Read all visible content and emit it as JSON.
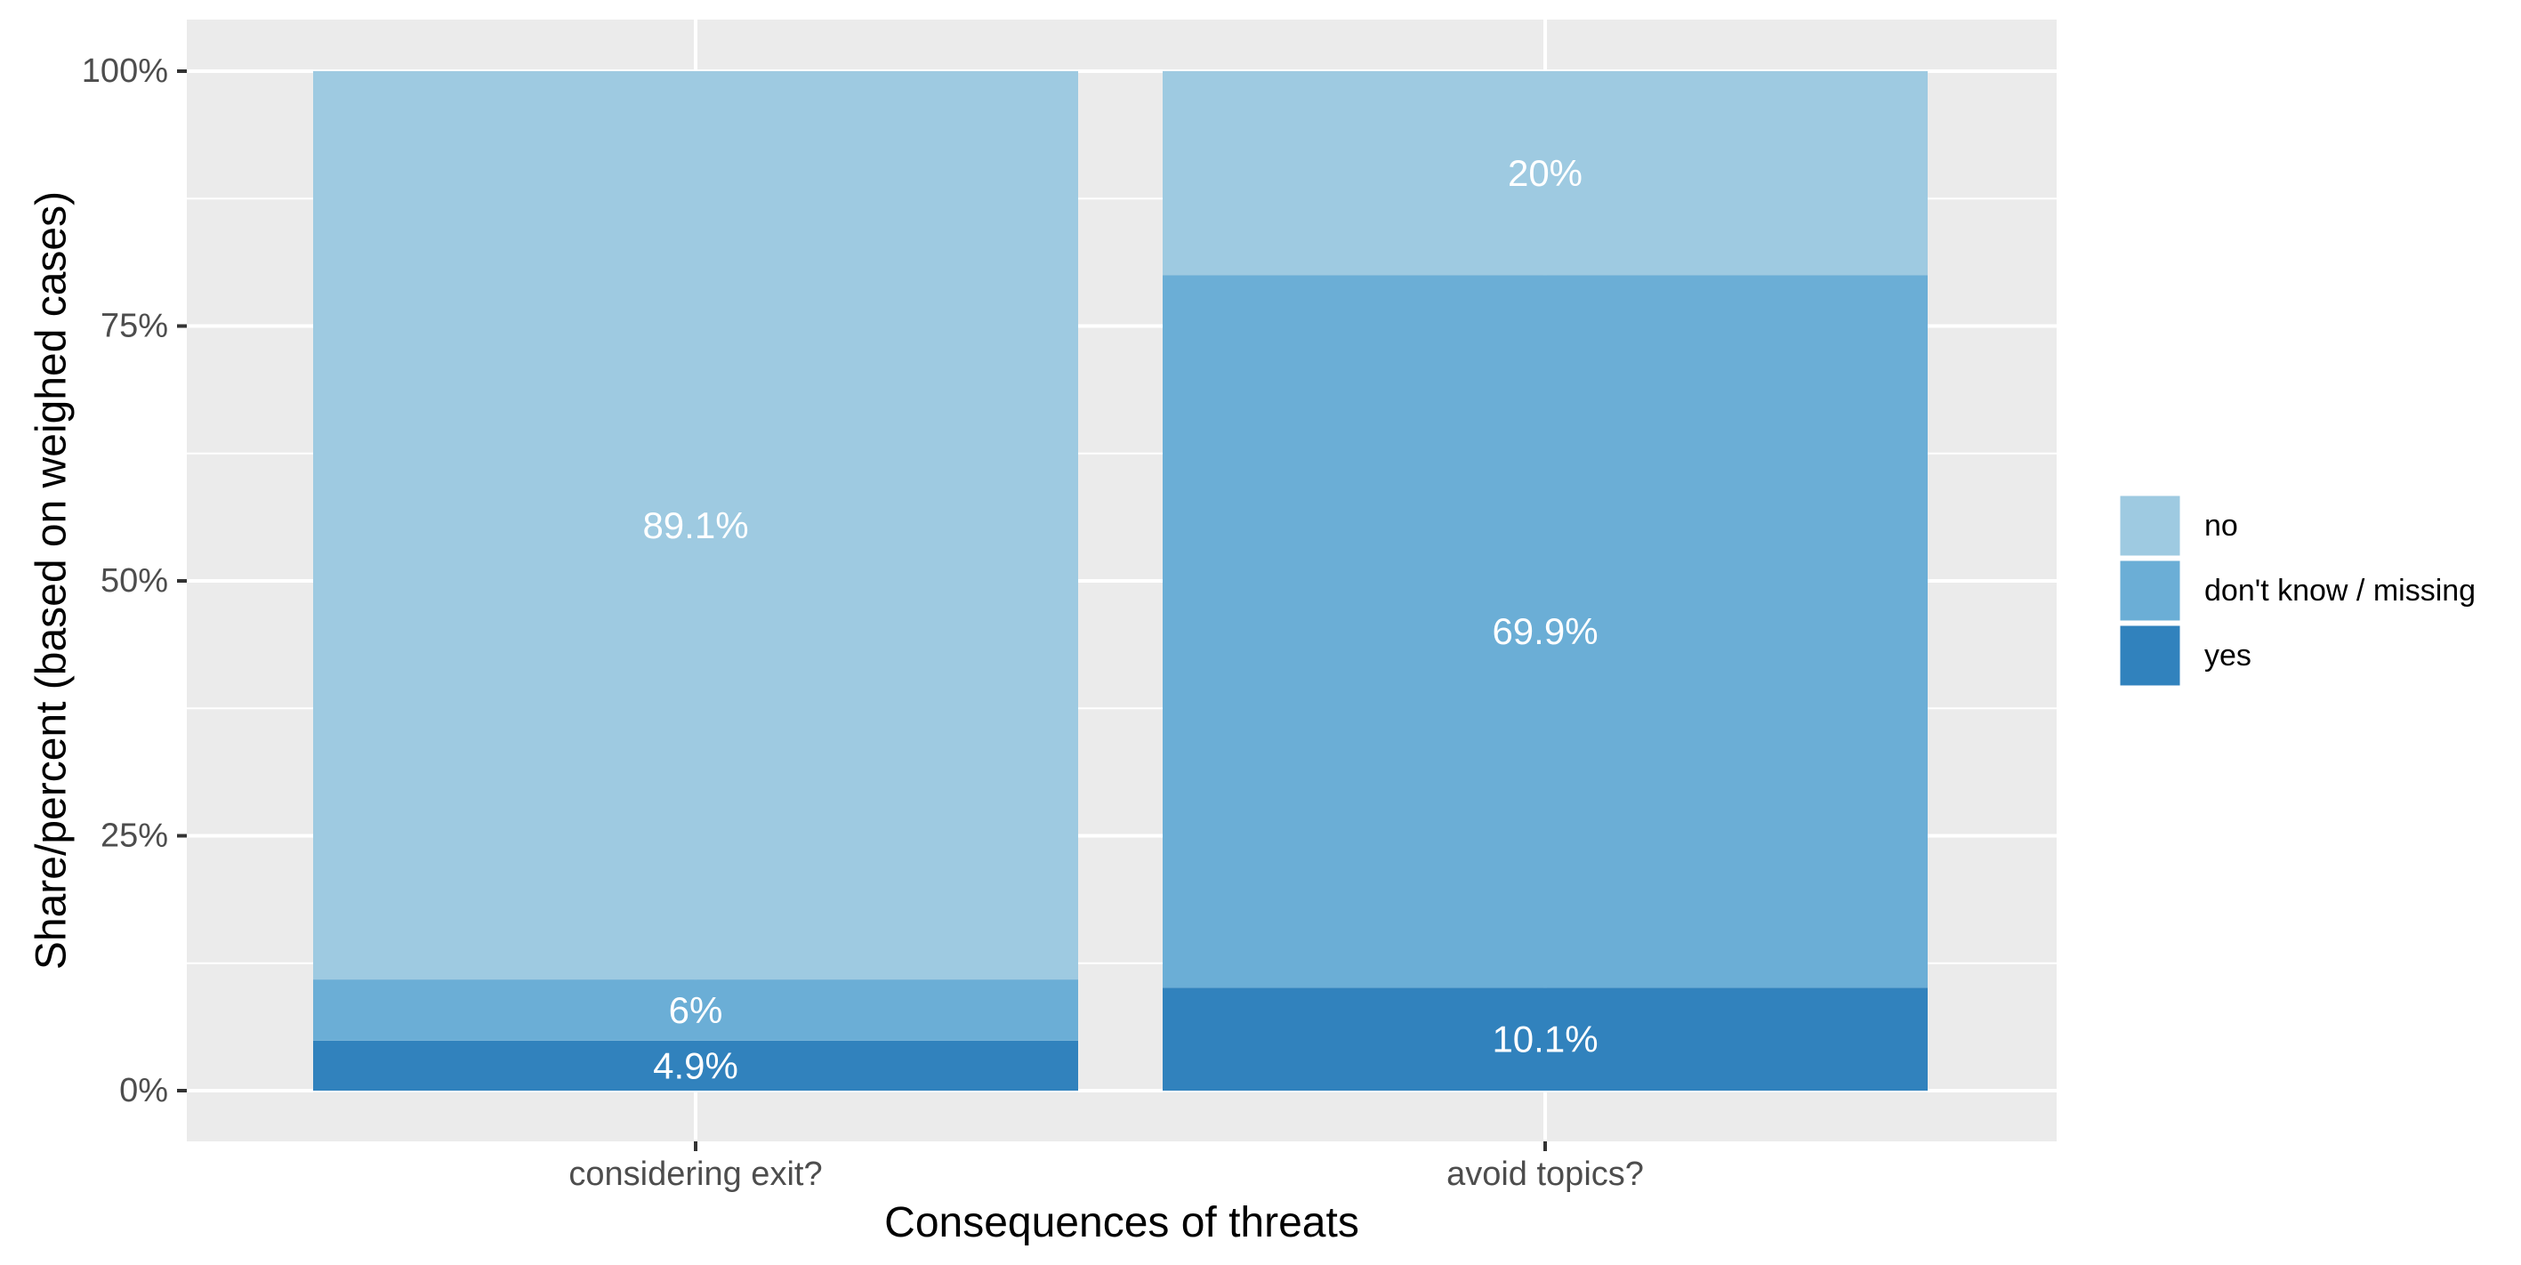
{
  "chart_data": {
    "type": "bar",
    "stacked": true,
    "categories": [
      "considering exit?",
      "avoid topics?"
    ],
    "series": [
      {
        "name": "yes",
        "color": "#3182BD",
        "values": [
          4.9,
          10.1
        ],
        "labels": [
          "4.9%",
          "10.1%"
        ]
      },
      {
        "name": "don't know / missing",
        "color": "#6BAED6",
        "values": [
          6,
          69.9
        ],
        "labels": [
          "6%",
          "69.9%"
        ]
      },
      {
        "name": "no",
        "color": "#9ECAE1",
        "values": [
          89.1,
          20
        ],
        "labels": [
          "89.1%",
          "20%"
        ]
      }
    ],
    "legend_order": [
      "no",
      "don't know / missing",
      "yes"
    ],
    "xlabel": "Consequences of threats",
    "ylabel": "Share/percent (based on weighed cases)",
    "ylim": [
      0,
      100
    ],
    "yticks": [
      0,
      25,
      50,
      75,
      100
    ],
    "ytick_labels": [
      "0%",
      "25%",
      "50%",
      "75%",
      "100%"
    ],
    "grid": true,
    "panel_background": "#EBEBEB",
    "grid_color": "#FFFFFF",
    "legend_position": "right"
  }
}
